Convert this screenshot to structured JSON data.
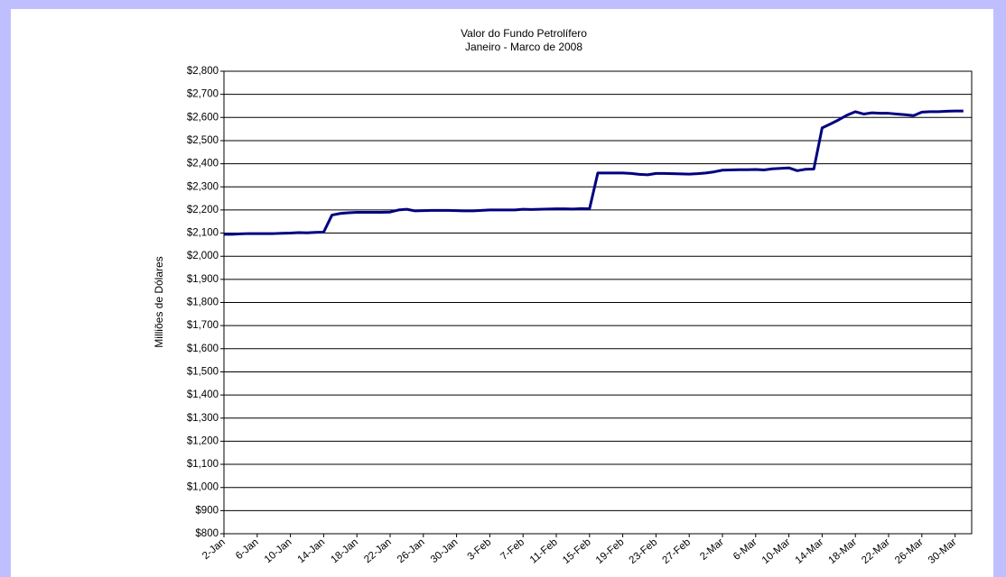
{
  "chart_data": {
    "type": "line",
    "title": "Valor do Fundo Petrolífero",
    "subtitle": "Janeiro - Marco de 2008",
    "y_label": "Milliões de Dólares",
    "categories": [
      "2-Jan",
      null,
      null,
      null,
      "6-Jan",
      null,
      null,
      null,
      "10-Jan",
      null,
      null,
      null,
      "14-Jan",
      null,
      null,
      null,
      "18-Jan",
      null,
      null,
      null,
      "22-Jan",
      null,
      null,
      null,
      "26-Jan",
      null,
      null,
      null,
      "30-Jan",
      null,
      null,
      null,
      "3-Feb",
      null,
      null,
      null,
      "7-Feb",
      null,
      null,
      null,
      "11-Feb",
      null,
      null,
      null,
      "15-Feb",
      null,
      null,
      null,
      "19-Feb",
      null,
      null,
      null,
      "23-Feb",
      null,
      null,
      null,
      "27-Feb",
      null,
      null,
      null,
      "2-Mar",
      null,
      null,
      null,
      "6-Mar",
      null,
      null,
      null,
      "10-Mar",
      null,
      null,
      null,
      "14-Mar",
      null,
      null,
      null,
      "18-Mar",
      null,
      null,
      null,
      "22-Mar",
      null,
      null,
      null,
      "26-Mar",
      null,
      null,
      null,
      "30-Mar",
      null
    ],
    "series": [
      {
        "color": "#000080",
        "values": [
          2095,
          2095,
          2097,
          2098,
          2098,
          2098,
          2098,
          2099,
          2100,
          2102,
          2101,
          2103,
          2104,
          2178,
          2185,
          2188,
          2190,
          2190,
          2190,
          2190,
          2191,
          2200,
          2203,
          2196,
          2197,
          2198,
          2198,
          2198,
          2197,
          2196,
          2196,
          2198,
          2200,
          2200,
          2200,
          2200,
          2203,
          2202,
          2203,
          2204,
          2205,
          2205,
          2204,
          2206,
          2205,
          2360,
          2360,
          2360,
          2360,
          2358,
          2354,
          2352,
          2358,
          2358,
          2357,
          2356,
          2355,
          2357,
          2360,
          2365,
          2372,
          2373,
          2374,
          2374,
          2375,
          2373,
          2378,
          2380,
          2382,
          2370,
          2376,
          2377,
          2555,
          2572,
          2590,
          2610,
          2625,
          2615,
          2620,
          2618,
          2618,
          2615,
          2612,
          2608,
          2623,
          2625,
          2625,
          2627,
          2628,
          2628
        ]
      }
    ],
    "ylim": [
      800,
      2800
    ],
    "yticks": [
      {
        "value": 800,
        "label": "$800"
      },
      {
        "value": 900,
        "label": "$900"
      },
      {
        "value": 1000,
        "label": "$1,000"
      },
      {
        "value": 1100,
        "label": "$1,100"
      },
      {
        "value": 1200,
        "label": "$1,200"
      },
      {
        "value": 1300,
        "label": "$1,300"
      },
      {
        "value": 1400,
        "label": "$1,400"
      },
      {
        "value": 1500,
        "label": "$1,500"
      },
      {
        "value": 1600,
        "label": "$1,600"
      },
      {
        "value": 1700,
        "label": "$1,700"
      },
      {
        "value": 1800,
        "label": "$1,800"
      },
      {
        "value": 1900,
        "label": "$1,900"
      },
      {
        "value": 2000,
        "label": "$2,000"
      },
      {
        "value": 2100,
        "label": "$2,100"
      },
      {
        "value": 2200,
        "label": "$2,200"
      },
      {
        "value": 2300,
        "label": "$2,300"
      },
      {
        "value": 2400,
        "label": "$2,400"
      },
      {
        "value": 2500,
        "label": "$2,500"
      },
      {
        "value": 2600,
        "label": "$2,600"
      },
      {
        "value": 2700,
        "label": "$2,700"
      },
      {
        "value": 2800,
        "label": "$2,800"
      }
    ],
    "grid": true
  }
}
